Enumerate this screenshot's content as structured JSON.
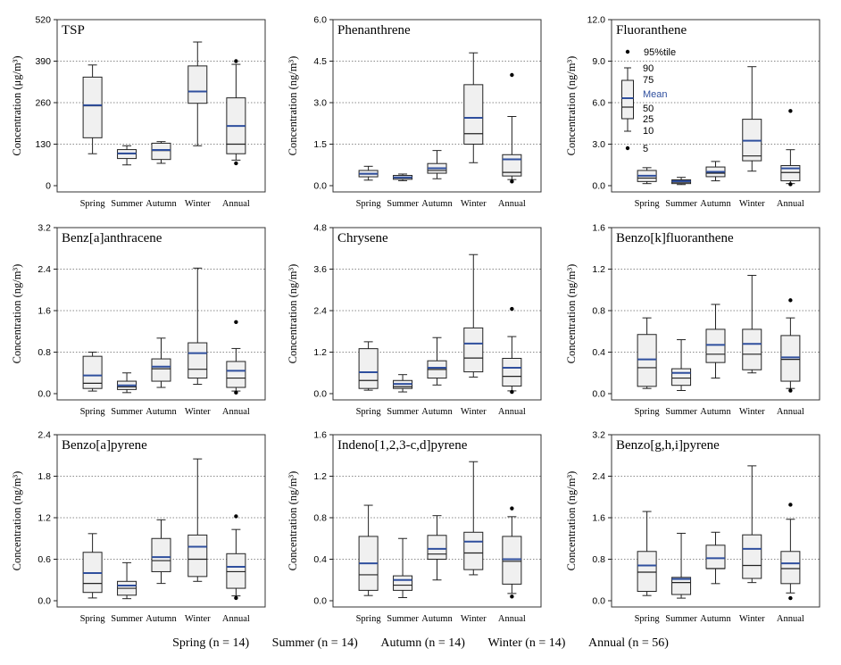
{
  "chart_data": [
    {
      "type": "box",
      "title": "TSP",
      "ylabel": "Concentration (μg/m³)",
      "ylim": [
        0,
        520
      ],
      "yticks": [
        0,
        130,
        260,
        390,
        520
      ],
      "tick_labels": [
        "0",
        "130",
        "260",
        "390",
        "520"
      ],
      "categories": [
        "Spring",
        "Summer",
        "Autumn",
        "Winter",
        "Annual"
      ],
      "boxes": [
        {
          "p10": 100,
          "p25": 150,
          "median": 250,
          "mean": 252,
          "p75": 340,
          "p90": 378,
          "out": []
        },
        {
          "p10": 65,
          "p25": 85,
          "median": 100,
          "mean": 101,
          "p75": 113,
          "p90": 125,
          "out": []
        },
        {
          "p10": 70,
          "p25": 82,
          "median": 110,
          "mean": 112,
          "p75": 133,
          "p90": 138,
          "out": []
        },
        {
          "p10": 125,
          "p25": 258,
          "median": 295,
          "mean": 295,
          "p75": 375,
          "p90": 450,
          "out": []
        },
        {
          "p10": 80,
          "p25": 100,
          "median": 130,
          "mean": 187,
          "p75": 275,
          "p90": 380,
          "out": [
            70,
            390
          ]
        }
      ]
    },
    {
      "type": "box",
      "title": "Phenanthrene",
      "ylabel": "Concentration (ng/m³)",
      "ylim": [
        0,
        6
      ],
      "yticks": [
        0,
        1.5,
        3,
        4.5,
        6
      ],
      "tick_labels": [
        "0.0",
        "1.5",
        "3.0",
        "4.5",
        "6.0"
      ],
      "categories": [
        "Spring",
        "Summer",
        "Autumn",
        "Winter",
        "Annual"
      ],
      "boxes": [
        {
          "p10": 0.2,
          "p25": 0.32,
          "median": 0.42,
          "mean": 0.43,
          "p75": 0.55,
          "p90": 0.7,
          "out": []
        },
        {
          "p10": 0.18,
          "p25": 0.23,
          "median": 0.28,
          "mean": 0.3,
          "p75": 0.37,
          "p90": 0.42,
          "out": []
        },
        {
          "p10": 0.25,
          "p25": 0.45,
          "median": 0.55,
          "mean": 0.63,
          "p75": 0.8,
          "p90": 1.27,
          "out": []
        },
        {
          "p10": 0.83,
          "p25": 1.5,
          "median": 1.88,
          "mean": 2.45,
          "p75": 3.65,
          "p90": 4.8,
          "out": []
        },
        {
          "p10": 0.22,
          "p25": 0.35,
          "median": 0.48,
          "mean": 0.95,
          "p75": 1.12,
          "p90": 2.5,
          "out": [
            0.15,
            4.0
          ]
        }
      ]
    },
    {
      "type": "box",
      "title": "Fluoranthene",
      "ylabel": "Concentration (ng/m³)",
      "ylim": [
        0,
        12
      ],
      "yticks": [
        0,
        3,
        6,
        9,
        12
      ],
      "tick_labels": [
        "0.0",
        "3.0",
        "6.0",
        "9.0",
        "12.0"
      ],
      "categories": [
        "Spring",
        "Summer",
        "Autumn",
        "Winter",
        "Annual"
      ],
      "boxes": [
        {
          "p10": 0.15,
          "p25": 0.3,
          "median": 0.55,
          "mean": 0.72,
          "p75": 1.1,
          "p90": 1.3,
          "out": []
        },
        {
          "p10": 0.08,
          "p25": 0.15,
          "median": 0.25,
          "mean": 0.32,
          "p75": 0.42,
          "p90": 0.6,
          "out": []
        },
        {
          "p10": 0.35,
          "p25": 0.65,
          "median": 0.9,
          "mean": 1.0,
          "p75": 1.35,
          "p90": 1.75,
          "out": []
        },
        {
          "p10": 1.05,
          "p25": 1.8,
          "median": 2.15,
          "mean": 3.25,
          "p75": 4.8,
          "p90": 8.6,
          "out": []
        },
        {
          "p10": 0.15,
          "p25": 0.35,
          "median": 0.95,
          "mean": 1.25,
          "p75": 1.45,
          "p90": 2.6,
          "out": [
            0.1,
            5.4
          ]
        }
      ]
    },
    {
      "type": "box",
      "title": "Benz[a]anthracene",
      "ylabel": "Concentration (ng/m³)",
      "ylim": [
        0,
        3.2
      ],
      "yticks": [
        0,
        0.8,
        1.6,
        2.4,
        3.2
      ],
      "tick_labels": [
        "0.0",
        "0.8",
        "1.6",
        "2.4",
        "3.2"
      ],
      "categories": [
        "Spring",
        "Summer",
        "Autumn",
        "Winter",
        "Annual"
      ],
      "boxes": [
        {
          "p10": 0.05,
          "p25": 0.1,
          "median": 0.2,
          "mean": 0.35,
          "p75": 0.72,
          "p90": 0.8,
          "out": []
        },
        {
          "p10": 0.02,
          "p25": 0.08,
          "median": 0.13,
          "mean": 0.16,
          "p75": 0.24,
          "p90": 0.4,
          "out": []
        },
        {
          "p10": 0.12,
          "p25": 0.24,
          "median": 0.48,
          "mean": 0.52,
          "p75": 0.67,
          "p90": 1.07,
          "out": []
        },
        {
          "p10": 0.18,
          "p25": 0.3,
          "median": 0.47,
          "mean": 0.78,
          "p75": 0.98,
          "p90": 2.42,
          "out": []
        },
        {
          "p10": 0.05,
          "p25": 0.12,
          "median": 0.3,
          "mean": 0.44,
          "p75": 0.62,
          "p90": 0.87,
          "out": [
            0.02,
            1.38
          ]
        }
      ]
    },
    {
      "type": "box",
      "title": "Chrysene",
      "ylabel": "Concentration (ng/m³)",
      "ylim": [
        0,
        4.8
      ],
      "yticks": [
        0,
        1.2,
        2.4,
        3.6,
        4.8
      ],
      "tick_labels": [
        "0.0",
        "1.2",
        "2.4",
        "3.6",
        "4.8"
      ],
      "categories": [
        "Spring",
        "Summer",
        "Autumn",
        "Winter",
        "Annual"
      ],
      "boxes": [
        {
          "p10": 0.1,
          "p25": 0.15,
          "median": 0.38,
          "mean": 0.62,
          "p75": 1.3,
          "p90": 1.5,
          "out": []
        },
        {
          "p10": 0.05,
          "p25": 0.15,
          "median": 0.2,
          "mean": 0.28,
          "p75": 0.38,
          "p90": 0.55,
          "out": []
        },
        {
          "p10": 0.25,
          "p25": 0.45,
          "median": 0.7,
          "mean": 0.75,
          "p75": 0.95,
          "p90": 1.62,
          "out": []
        },
        {
          "p10": 0.48,
          "p25": 0.63,
          "median": 1.03,
          "mean": 1.45,
          "p75": 1.9,
          "p90": 4.02,
          "out": []
        },
        {
          "p10": 0.08,
          "p25": 0.22,
          "median": 0.5,
          "mean": 0.75,
          "p75": 1.02,
          "p90": 1.65,
          "out": [
            0.05,
            2.45
          ]
        }
      ]
    },
    {
      "type": "box",
      "title": "Benzo[k]fluoranthene",
      "ylabel": "Concentration (ng/m³)",
      "ylim": [
        0,
        1.6
      ],
      "yticks": [
        0,
        0.4,
        0.8,
        1.2,
        1.6
      ],
      "tick_labels": [
        "0.0",
        "0.4",
        "0.8",
        "1.2",
        "1.6"
      ],
      "categories": [
        "Spring",
        "Summer",
        "Autumn",
        "Winter",
        "Annual"
      ],
      "boxes": [
        {
          "p10": 0.05,
          "p25": 0.07,
          "median": 0.25,
          "mean": 0.33,
          "p75": 0.57,
          "p90": 0.73,
          "out": []
        },
        {
          "p10": 0.03,
          "p25": 0.08,
          "median": 0.15,
          "mean": 0.2,
          "p75": 0.24,
          "p90": 0.52,
          "out": []
        },
        {
          "p10": 0.15,
          "p25": 0.3,
          "median": 0.38,
          "mean": 0.47,
          "p75": 0.62,
          "p90": 0.86,
          "out": []
        },
        {
          "p10": 0.2,
          "p25": 0.23,
          "median": 0.38,
          "mean": 0.48,
          "p75": 0.62,
          "p90": 1.14,
          "out": []
        },
        {
          "p10": 0.05,
          "p25": 0.12,
          "median": 0.33,
          "mean": 0.35,
          "p75": 0.56,
          "p90": 0.73,
          "out": [
            0.03,
            0.9
          ]
        }
      ]
    },
    {
      "type": "box",
      "title": "Benzo[a]pyrene",
      "ylabel": "Concentration (ng/m³)",
      "ylim": [
        0,
        2.4
      ],
      "yticks": [
        0,
        0.6,
        1.2,
        1.8,
        2.4
      ],
      "tick_labels": [
        "0.0",
        "0.6",
        "1.2",
        "1.8",
        "2.4"
      ],
      "categories": [
        "Spring",
        "Summer",
        "Autumn",
        "Winter",
        "Annual"
      ],
      "boxes": [
        {
          "p10": 0.04,
          "p25": 0.12,
          "median": 0.25,
          "mean": 0.4,
          "p75": 0.7,
          "p90": 0.97,
          "out": []
        },
        {
          "p10": 0.03,
          "p25": 0.08,
          "median": 0.18,
          "mean": 0.22,
          "p75": 0.28,
          "p90": 0.55,
          "out": []
        },
        {
          "p10": 0.25,
          "p25": 0.42,
          "median": 0.58,
          "mean": 0.63,
          "p75": 0.9,
          "p90": 1.17,
          "out": []
        },
        {
          "p10": 0.28,
          "p25": 0.35,
          "median": 0.6,
          "mean": 0.78,
          "p75": 0.95,
          "p90": 2.05,
          "out": []
        },
        {
          "p10": 0.07,
          "p25": 0.18,
          "median": 0.42,
          "mean": 0.49,
          "p75": 0.68,
          "p90": 1.03,
          "out": [
            0.04,
            1.22
          ]
        }
      ]
    },
    {
      "type": "box",
      "title": "Indeno[1,2,3-c,d]pyrene",
      "ylabel": "Concentration (ng/m³)",
      "ylim": [
        0,
        1.6
      ],
      "yticks": [
        0,
        0.4,
        0.8,
        1.2,
        1.6
      ],
      "tick_labels": [
        "0.0",
        "0.4",
        "0.8",
        "1.2",
        "1.6"
      ],
      "categories": [
        "Spring",
        "Summer",
        "Autumn",
        "Winter",
        "Annual"
      ],
      "boxes": [
        {
          "p10": 0.05,
          "p25": 0.1,
          "median": 0.25,
          "mean": 0.36,
          "p75": 0.62,
          "p90": 0.92,
          "out": []
        },
        {
          "p10": 0.03,
          "p25": 0.1,
          "median": 0.15,
          "mean": 0.2,
          "p75": 0.24,
          "p90": 0.6,
          "out": []
        },
        {
          "p10": 0.2,
          "p25": 0.4,
          "median": 0.45,
          "mean": 0.5,
          "p75": 0.63,
          "p90": 0.82,
          "out": []
        },
        {
          "p10": 0.25,
          "p25": 0.3,
          "median": 0.46,
          "mean": 0.57,
          "p75": 0.66,
          "p90": 1.34,
          "out": []
        },
        {
          "p10": 0.07,
          "p25": 0.16,
          "median": 0.38,
          "mean": 0.4,
          "p75": 0.62,
          "p90": 0.81,
          "out": [
            0.04,
            0.89
          ]
        }
      ]
    },
    {
      "type": "box",
      "title": "Benzo[g,h,i]pyrene",
      "ylabel": "Concentration (ng/m³)",
      "ylim": [
        0,
        3.2
      ],
      "yticks": [
        0,
        0.8,
        1.6,
        2.4,
        3.2
      ],
      "tick_labels": [
        "0.0",
        "0.8",
        "1.6",
        "2.4",
        "3.2"
      ],
      "categories": [
        "Spring",
        "Summer",
        "Autumn",
        "Winter",
        "Annual"
      ],
      "boxes": [
        {
          "p10": 0.1,
          "p25": 0.18,
          "median": 0.55,
          "mean": 0.68,
          "p75": 0.95,
          "p90": 1.72,
          "out": []
        },
        {
          "p10": 0.05,
          "p25": 0.12,
          "median": 0.35,
          "mean": 0.42,
          "p75": 0.45,
          "p90": 1.3,
          "out": []
        },
        {
          "p10": 0.33,
          "p25": 0.62,
          "median": 0.62,
          "mean": 0.82,
          "p75": 1.07,
          "p90": 1.32,
          "out": []
        },
        {
          "p10": 0.35,
          "p25": 0.43,
          "median": 0.68,
          "mean": 1.0,
          "p75": 1.27,
          "p90": 2.6,
          "out": []
        },
        {
          "p10": 0.15,
          "p25": 0.33,
          "median": 0.62,
          "mean": 0.72,
          "p75": 0.95,
          "p90": 1.57,
          "out": [
            0.05,
            1.85
          ]
        }
      ]
    }
  ],
  "legend": {
    "marker_label": "95%tile",
    "labels": [
      "90",
      "75",
      "Mean",
      "50",
      "25",
      "10",
      "5"
    ]
  },
  "footer": {
    "spring": "Spring (n = 14)",
    "summer": "Summer (n = 14)",
    "autumn": "Autumn (n = 14)",
    "winter": "Winter (n = 14)",
    "annual": "Annual (n = 56)"
  },
  "colors": {
    "mean_line": "#2f4f9e",
    "box_fill": "#f0f0f0",
    "grid": "#666666"
  }
}
